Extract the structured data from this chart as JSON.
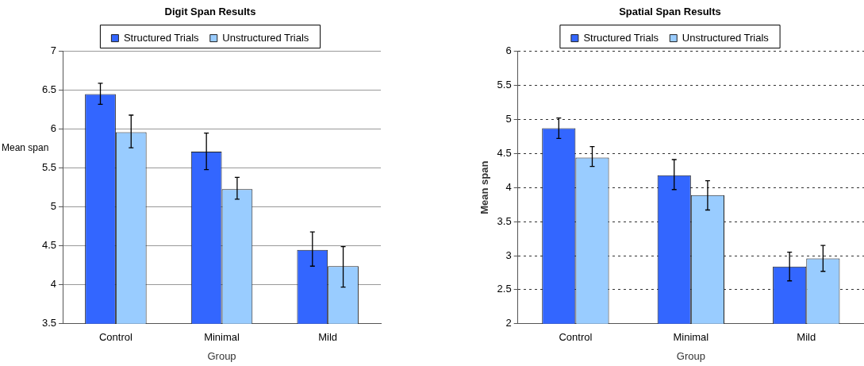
{
  "chart_data": [
    {
      "type": "bar",
      "title": "Digit Span Results",
      "xlabel": "Group",
      "ylabel": "Mean span",
      "categories": [
        "Control",
        "Minimal",
        "Mild"
      ],
      "series": [
        {
          "name": "Structured Trials",
          "color": "#3366ff",
          "values": [
            6.45,
            5.71,
            4.45
          ],
          "errors": [
            [
              6.32,
              6.59
            ],
            [
              5.48,
              5.95
            ],
            [
              4.24,
              4.68
            ]
          ]
        },
        {
          "name": "Unstructured Trials",
          "color": "#99ccff",
          "values": [
            5.96,
            5.23,
            4.24
          ],
          "errors": [
            [
              5.76,
              6.18
            ],
            [
              5.1,
              5.38
            ],
            [
              3.97,
              4.49
            ]
          ]
        }
      ],
      "ylim": [
        3.5,
        7
      ],
      "yticks": [
        3.5,
        4,
        4.5,
        5,
        5.5,
        6,
        6.5,
        7
      ],
      "grid": "y",
      "legend": "top"
    },
    {
      "type": "bar",
      "title": "Spatial Span Results",
      "xlabel": "Group",
      "ylabel": "Mean span",
      "categories": [
        "Control",
        "Minimal",
        "Mild"
      ],
      "series": [
        {
          "name": "Structured Trials",
          "color": "#3366ff",
          "values": [
            4.87,
            4.18,
            2.84
          ],
          "errors": [
            [
              4.72,
              5.02
            ],
            [
              3.97,
              4.41
            ],
            [
              2.63,
              3.05
            ]
          ]
        },
        {
          "name": "Unstructured Trials",
          "color": "#99ccff",
          "values": [
            4.44,
            3.89,
            2.96
          ],
          "errors": [
            [
              4.31,
              4.6
            ],
            [
              3.67,
              4.1
            ],
            [
              2.77,
              3.15
            ]
          ]
        }
      ],
      "ylim": [
        2,
        6
      ],
      "yticks": [
        2,
        2.5,
        3,
        3.5,
        4,
        4.5,
        5,
        5.5,
        6
      ],
      "grid": "y",
      "legend": "top"
    }
  ]
}
